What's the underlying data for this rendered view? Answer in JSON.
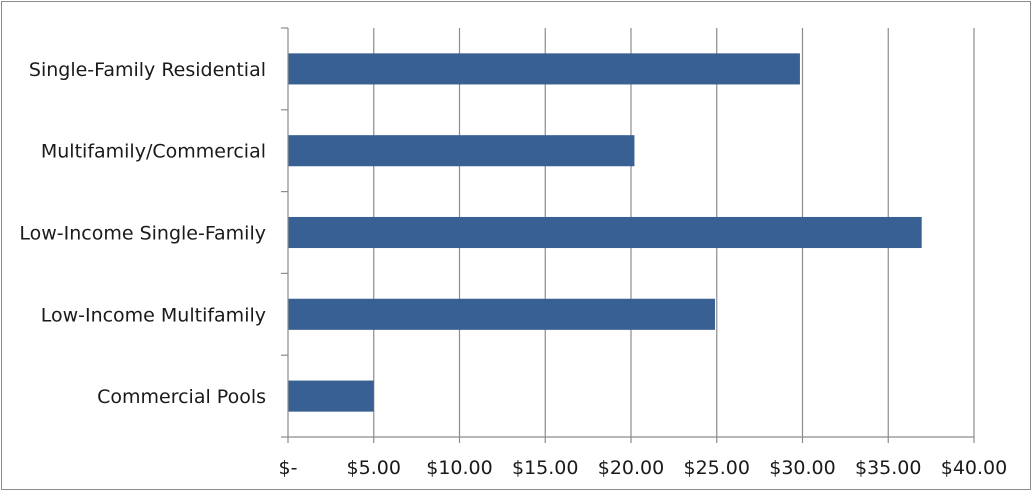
{
  "chart_data": {
    "type": "bar",
    "orientation": "horizontal",
    "title": "",
    "xlabel": "",
    "ylabel": "",
    "categories": [
      "Single-Family Residential",
      "Multifamily/Commercial",
      "Low-Income Single-Family",
      "Low-Income Multifamily",
      "Commercial Pools"
    ],
    "values": [
      29.85,
      20.2,
      36.95,
      24.9,
      5.0
    ],
    "xlim": [
      0,
      40
    ],
    "x_ticks": [
      0,
      5,
      10,
      15,
      20,
      25,
      30,
      35,
      40
    ],
    "x_tick_labels": [
      "$-",
      "$5.00",
      "$10.00",
      "$15.00",
      "$20.00",
      "$25.00",
      "$30.00",
      "$35.00",
      "$40.00"
    ],
    "grid": "vertical major gridlines",
    "legend": "none",
    "bar_color": "#386092",
    "grid_color": "#8c8c8c"
  }
}
